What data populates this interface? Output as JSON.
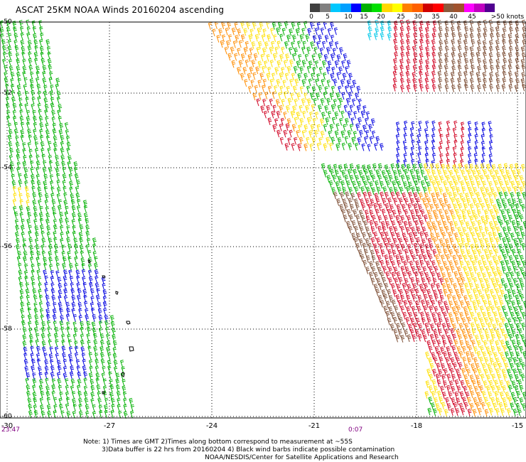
{
  "header": {
    "title": "ASCAT 25KM NOAA Winds 20160204 ascending"
  },
  "colorbar": {
    "colors": [
      "#404040",
      "#808080",
      "#00c8ff",
      "#00a0ff",
      "#0000ff",
      "#00b000",
      "#00e000",
      "#ffd800",
      "#ffff00",
      "#ff8000",
      "#ff6000",
      "#d00000",
      "#ff0000",
      "#8b5a3c",
      "#a0522d",
      "#ff00ff",
      "#c000c0",
      "#500090"
    ],
    "labels": [
      "0",
      "5",
      "10",
      "15",
      "20",
      "25",
      "30",
      "35",
      "40",
      "45",
      ">50 knots"
    ]
  },
  "axes": {
    "x_ticks": [
      "-30",
      "-27",
      "-24",
      "-21",
      "-18",
      "-15"
    ],
    "y_ticks": [
      "-50",
      "-52",
      "-54",
      "-56",
      "-58",
      "-60"
    ]
  },
  "times": {
    "left": "23:47",
    "center": "0:07"
  },
  "notes": {
    "line1": "Note: 1) Times are GMT 2)Times along bottom correspond to measurement at ~55S",
    "line2": "3)Data buffer is 22 hrs from 20160204 4) Black wind barbs indicate possible contamination",
    "line3": "NOAA/NESDIS/Center for Satellite Applications and Research"
  },
  "barb_colors": {
    "green": "#00b000",
    "blue": "#0000e0",
    "yellow": "#ffe000",
    "orange": "#ff8c00",
    "red": "#d00020",
    "brown": "#7a4a30",
    "black": "#000000",
    "cyan": "#00c8e8"
  }
}
